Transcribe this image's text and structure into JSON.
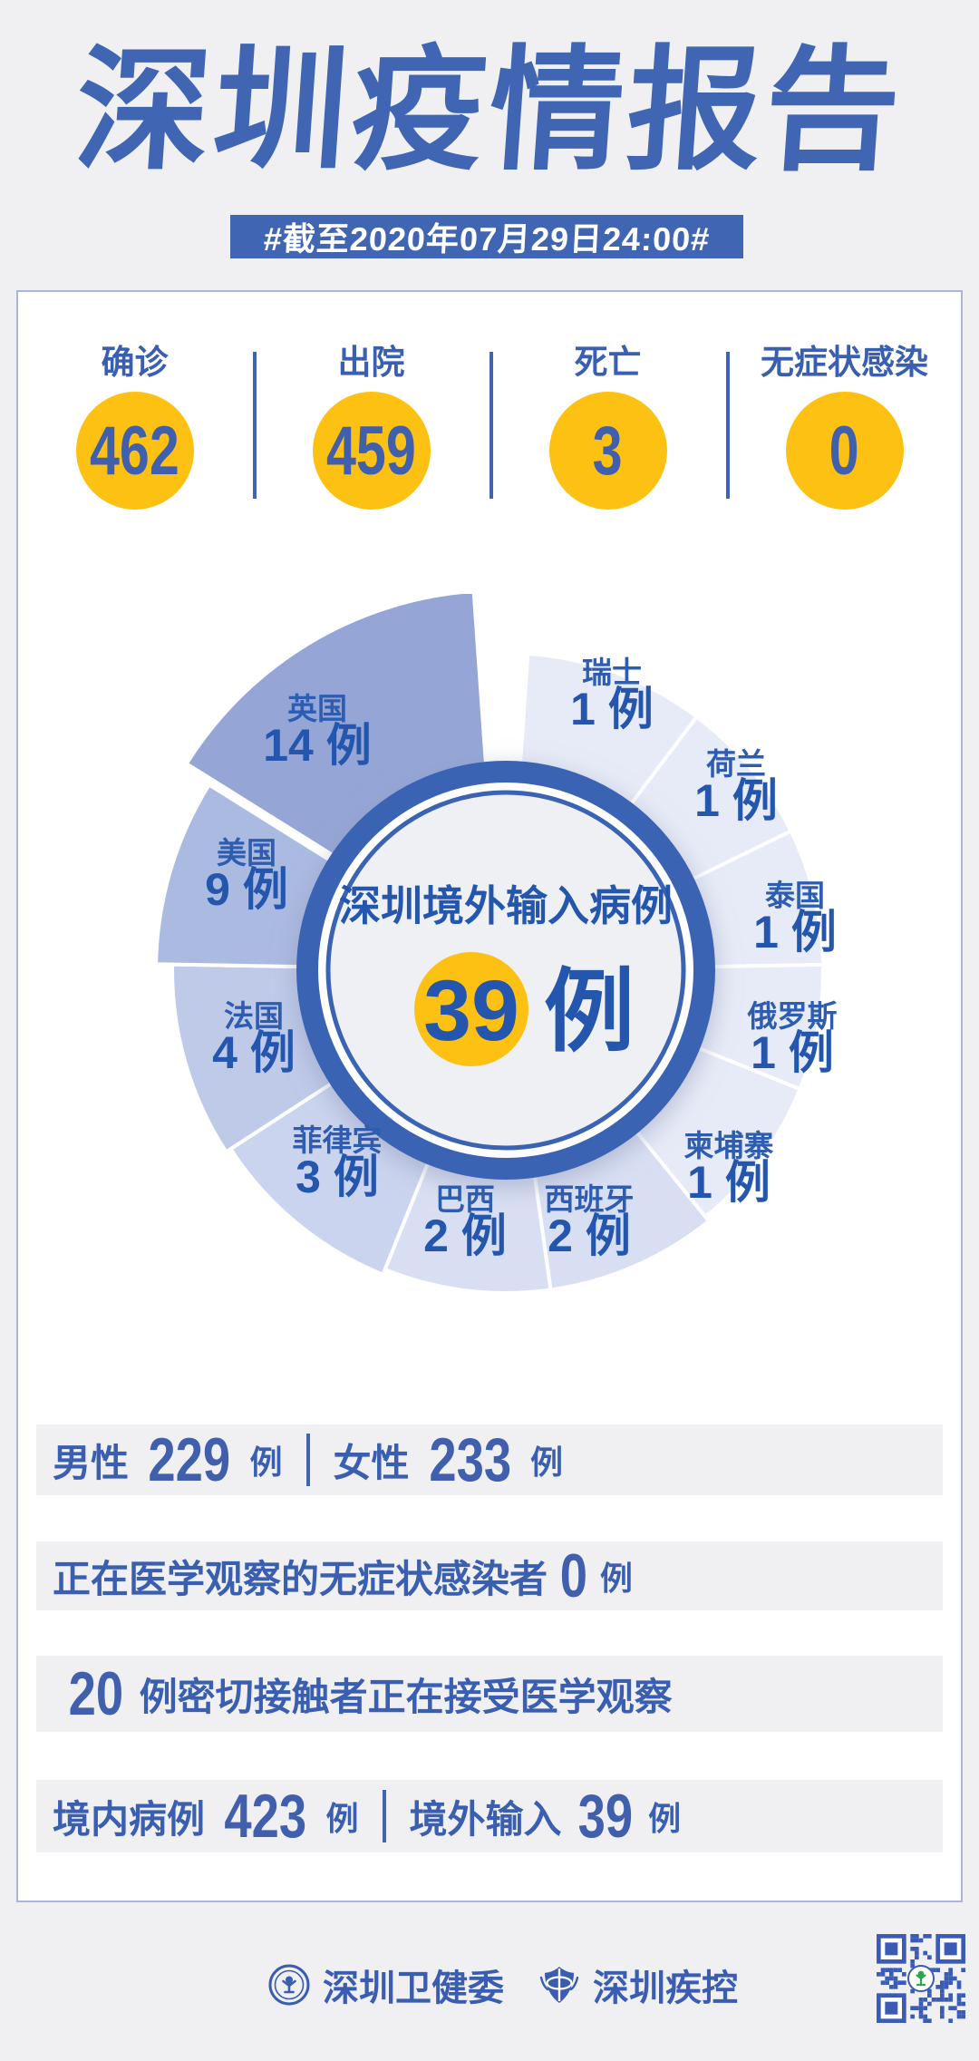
{
  "page": {
    "title": "深圳疫情报告",
    "subtitle": "#截至2020年07月29日24:00#"
  },
  "summary_stats": [
    {
      "label": "确诊",
      "value": "462"
    },
    {
      "label": "出院",
      "value": "459"
    },
    {
      "label": "死亡",
      "value": "3"
    },
    {
      "label": "无症状感染",
      "value": "0"
    }
  ],
  "chart_data": {
    "type": "pie",
    "variant": "nightingale-rose",
    "center_title": "深圳境外输入病例",
    "total_value": "39",
    "total_unit": "例",
    "unit": "例",
    "legend_position": "labels-on-slices",
    "series": [
      {
        "name": "瑞士",
        "value": 1
      },
      {
        "name": "荷兰",
        "value": 1
      },
      {
        "name": "泰国",
        "value": 1
      },
      {
        "name": "俄罗斯",
        "value": 1
      },
      {
        "name": "柬埔寨",
        "value": 1
      },
      {
        "name": "西班牙",
        "value": 2
      },
      {
        "name": "巴西",
        "value": 2
      },
      {
        "name": "菲律宾",
        "value": 3
      },
      {
        "name": "法国",
        "value": 4
      },
      {
        "name": "美国",
        "value": 9
      },
      {
        "name": "英国",
        "value": 14
      }
    ]
  },
  "detail_rows": [
    {
      "parts": [
        {
          "t": "男性",
          "s": "label"
        },
        {
          "t": "229",
          "s": "num"
        },
        {
          "t": "例",
          "s": "unit"
        },
        {
          "t": "",
          "s": "div"
        },
        {
          "t": "女性",
          "s": "label"
        },
        {
          "t": "233",
          "s": "num"
        },
        {
          "t": "例",
          "s": "unit"
        }
      ]
    },
    {
      "parts": [
        {
          "t": "正在医学观察的无症状感染者",
          "s": "label"
        },
        {
          "t": "0",
          "s": "num"
        },
        {
          "t": "例",
          "s": "unit"
        }
      ]
    },
    {
      "parts": [
        {
          "t": "20",
          "s": "num"
        },
        {
          "t": "例密切接触者正在接受医学观察",
          "s": "label"
        }
      ]
    },
    {
      "parts": [
        {
          "t": "境内病例",
          "s": "label"
        },
        {
          "t": "423",
          "s": "num"
        },
        {
          "t": "例",
          "s": "unit"
        },
        {
          "t": "",
          "s": "div"
        },
        {
          "t": "境外输入",
          "s": "label"
        },
        {
          "t": "39",
          "s": "num"
        },
        {
          "t": "例",
          "s": "unit"
        }
      ]
    }
  ],
  "footer": {
    "org1": "深圳卫健委",
    "org2": "深圳疾控",
    "qr_icon": "qr-code",
    "org1_icon": "health-commission-emblem",
    "org2_icon": "cdc-shield-emblem"
  },
  "colors": {
    "accent_blue": "#4065b2",
    "text_blue": "#3a5fb0",
    "number_blue": "#4060ae",
    "badge_yellow": "#fdc114",
    "ring_blue": "#3b63b4",
    "center_bg": "#eef0f3",
    "panel_border": "#aab5d8",
    "page_bg": "#f0f0f2",
    "bar_bg": "#f0f0f2",
    "slice_shades": {
      "1": "#e7ebf7",
      "2": "#d9dff3",
      "3": "#cbd4ee",
      "4": "#bfcae9",
      "9": "#abbae1",
      "14": "#95a6d6"
    }
  }
}
